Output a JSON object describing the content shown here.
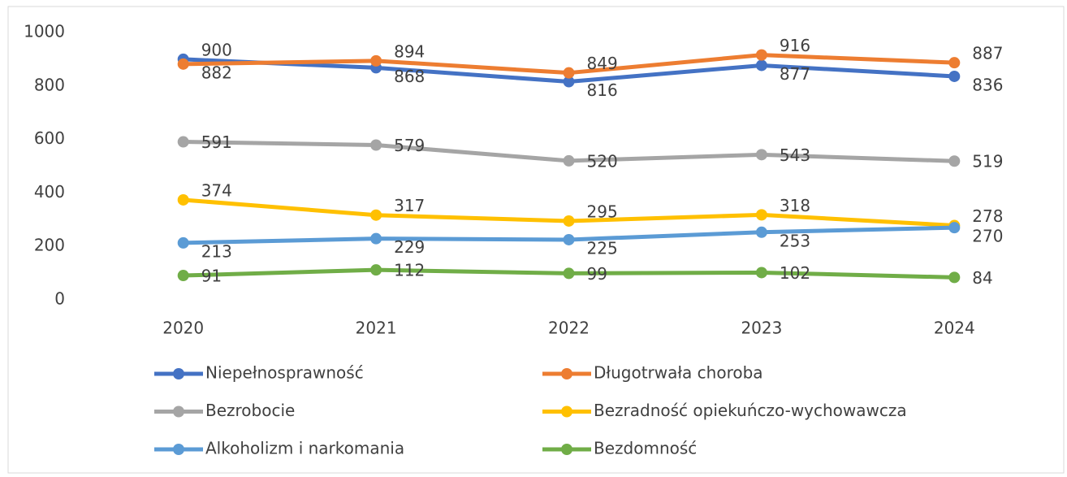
{
  "chart_data": {
    "type": "line",
    "categories": [
      "2020",
      "2021",
      "2022",
      "2023",
      "2024"
    ],
    "series": [
      {
        "name": "Niepełnosprawność",
        "color": "#4472c4",
        "values": [
          900,
          868,
          816,
          877,
          836
        ]
      },
      {
        "name": "Długotrwała choroba",
        "color": "#ed7d31",
        "values": [
          882,
          894,
          849,
          916,
          887
        ]
      },
      {
        "name": "Bezrobocie",
        "color": "#a5a5a5",
        "values": [
          591,
          579,
          520,
          543,
          519
        ]
      },
      {
        "name": "Bezradność opiekuńczo-wychowawcza",
        "color": "#ffc000",
        "values": [
          374,
          317,
          295,
          318,
          278
        ]
      },
      {
        "name": "Alkoholizm i narkomania",
        "color": "#5b9bd5",
        "values": [
          213,
          229,
          225,
          253,
          270
        ]
      },
      {
        "name": "Bezdomność",
        "color": "#70ad47",
        "values": [
          91,
          112,
          99,
          102,
          84
        ]
      }
    ],
    "ylim": [
      0,
      1000
    ],
    "yticks": [
      0,
      200,
      400,
      600,
      800,
      1000
    ],
    "grid": false,
    "legend": "bottom"
  }
}
